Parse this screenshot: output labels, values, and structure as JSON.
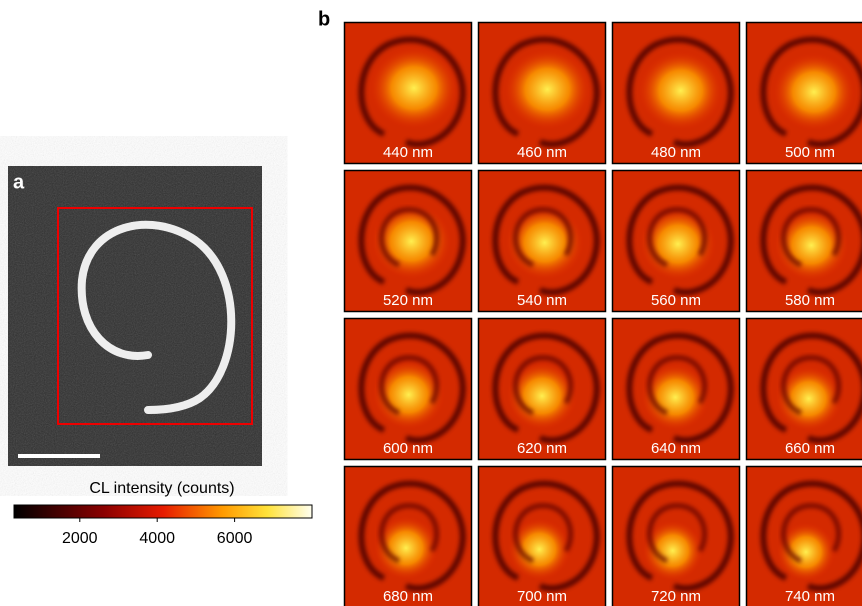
{
  "panel_a": {
    "label": "a"
  },
  "colorbar": {
    "title": "CL intensity (counts)",
    "range": [
      300,
      8000
    ],
    "ticks": [
      2000,
      4000,
      6000
    ]
  },
  "panel_b": {
    "label": "b",
    "tiles": [
      "440 nm",
      "460 nm",
      "480 nm",
      "500 nm",
      "520 nm",
      "540 nm",
      "560 nm",
      "580 nm",
      "600 nm",
      "620 nm",
      "640 nm",
      "660 nm",
      "680 nm",
      "700 nm",
      "720 nm",
      "740 nm"
    ]
  }
}
